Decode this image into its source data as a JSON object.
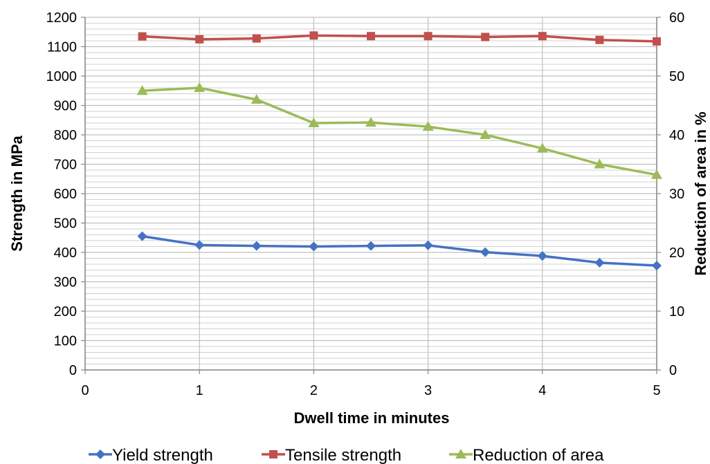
{
  "chart_data": {
    "type": "line",
    "x": [
      0.5,
      1,
      1.5,
      2,
      2.5,
      3,
      3.5,
      4,
      4.5,
      5
    ],
    "series": [
      {
        "name": "Yield strength",
        "axis": "left",
        "color": "#4472C4",
        "marker": "diamond",
        "values": [
          455,
          425,
          422,
          420,
          422,
          424,
          401,
          388,
          365,
          355
        ]
      },
      {
        "name": "Tensile strength",
        "axis": "left",
        "color": "#C0504D",
        "marker": "square",
        "values": [
          1135,
          1125,
          1128,
          1138,
          1136,
          1136,
          1133,
          1136,
          1123,
          1118
        ]
      },
      {
        "name": "Reduction of area",
        "axis": "right",
        "color": "#9BBB59",
        "marker": "triangle",
        "values": [
          47.5,
          48,
          46,
          42,
          42.1,
          41.4,
          40,
          37.7,
          35,
          33.2
        ]
      }
    ],
    "xlabel": "Dwell time in minutes",
    "ylabel": "Strength in MPa",
    "y2label": "Reduction of area in %",
    "xlim": [
      0,
      5
    ],
    "ylim": [
      0,
      1200
    ],
    "y2lim": [
      0,
      60
    ],
    "x_ticks": [
      "0",
      "1",
      "2",
      "3",
      "4",
      "5"
    ],
    "y_ticks": [
      "0",
      "100",
      "200",
      "300",
      "400",
      "500",
      "600",
      "700",
      "800",
      "900",
      "1000",
      "1100",
      "1200"
    ],
    "y2_ticks": [
      "0",
      "10",
      "20",
      "30",
      "40",
      "50",
      "60"
    ],
    "grid": true,
    "legend_position": "bottom",
    "colors": {
      "grid": "#BFBFBF",
      "axis": "#868686"
    }
  }
}
